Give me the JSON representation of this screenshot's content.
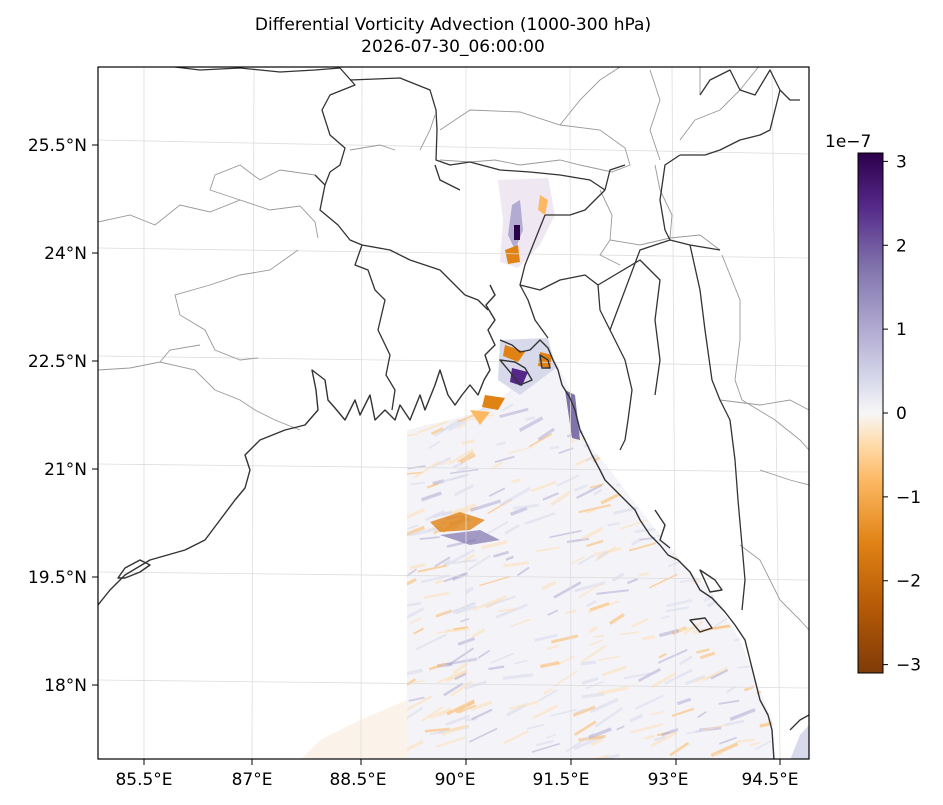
{
  "title": "Differential Vorticity Advection (1000-300 hPa)",
  "timestamp": "2026-07-30_06:00:00",
  "lat_labels": [
    "25.5°N",
    "24°N",
    "22.5°N",
    "21°N",
    "19.5°N",
    "18°N"
  ],
  "lon_labels": [
    "85.5°E",
    "87°E",
    "88.5°E",
    "90°E",
    "91.5°E",
    "93°E",
    "94.5°E"
  ],
  "colorbar": {
    "scale_label": "1e−7",
    "tick_labels": [
      "3",
      "2",
      "1",
      "0",
      "−1",
      "−2",
      "−3"
    ],
    "tick_values": [
      3,
      2,
      1,
      0,
      -1,
      -2,
      -3
    ],
    "range": [
      -3.1,
      3.1
    ],
    "colormap": "PuOr (orange = negative, purple = positive)",
    "colors": [
      "#7f3b08",
      "#e08214",
      "#fdb863",
      "#fee0b6",
      "#f7f7f7",
      "#d8daeb",
      "#b2abd2",
      "#8073ac",
      "#2d004b"
    ]
  },
  "map": {
    "extent_lon": [
      84.85,
      94.95
    ],
    "extent_lat": [
      16.9,
      26.9
    ],
    "coastline_color": "#333333",
    "admin_border_color": "#999999",
    "gridline_color": "#dddddd"
  }
}
